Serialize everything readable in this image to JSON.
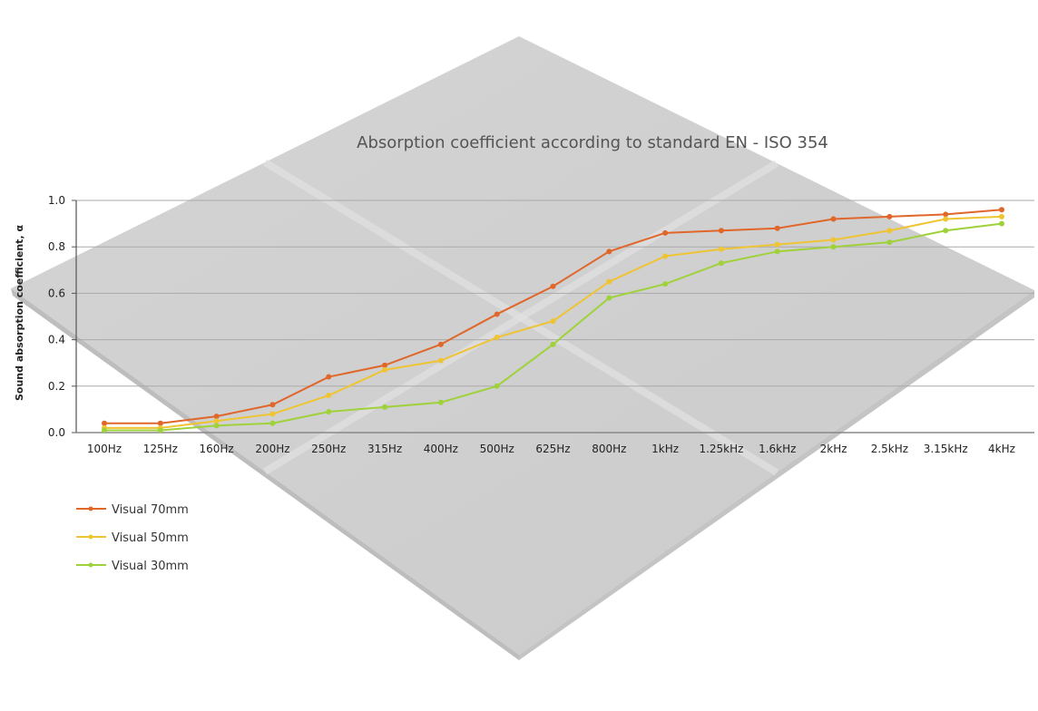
{
  "chart_data": {
    "type": "line",
    "title": "Absorption coefficient according to standard EN - ISO 354",
    "xlabel": "",
    "ylabel": "Sound absorption coefficient, α",
    "ylim": [
      0,
      1.0
    ],
    "yticks": [
      "0.0",
      "0.2",
      "0.4",
      "0.6",
      "0.8",
      "1.0"
    ],
    "ytick_values": [
      0,
      0.2,
      0.4,
      0.6,
      0.8,
      1.0
    ],
    "grid": true,
    "legend_position": "bottom-left",
    "categories": [
      "100Hz",
      "125Hz",
      "160Hz",
      "200Hz",
      "250Hz",
      "315Hz",
      "400Hz",
      "500Hz",
      "625Hz",
      "800Hz",
      "1kHz",
      "1.25kHz",
      "1.6kHz",
      "2kHz",
      "2.5kHz",
      "3.15kHz",
      "4kHz"
    ],
    "series": [
      {
        "name": "Visual 70mm",
        "color": "#e0662a",
        "values": [
          0.04,
          0.04,
          0.07,
          0.12,
          0.24,
          0.29,
          0.38,
          0.51,
          0.63,
          0.78,
          0.86,
          0.87,
          0.88,
          0.92,
          0.93,
          0.94,
          0.96
        ]
      },
      {
        "name": "Visual 50mm",
        "color": "#efc432",
        "values": [
          0.02,
          0.02,
          0.05,
          0.08,
          0.16,
          0.27,
          0.31,
          0.41,
          0.48,
          0.65,
          0.76,
          0.79,
          0.81,
          0.83,
          0.87,
          0.92,
          0.93
        ]
      },
      {
        "name": "Visual 30mm",
        "color": "#9fd23a",
        "values": [
          0.01,
          0.01,
          0.03,
          0.04,
          0.09,
          0.11,
          0.13,
          0.2,
          0.38,
          0.58,
          0.64,
          0.73,
          0.78,
          0.8,
          0.82,
          0.87,
          0.9
        ]
      }
    ]
  }
}
